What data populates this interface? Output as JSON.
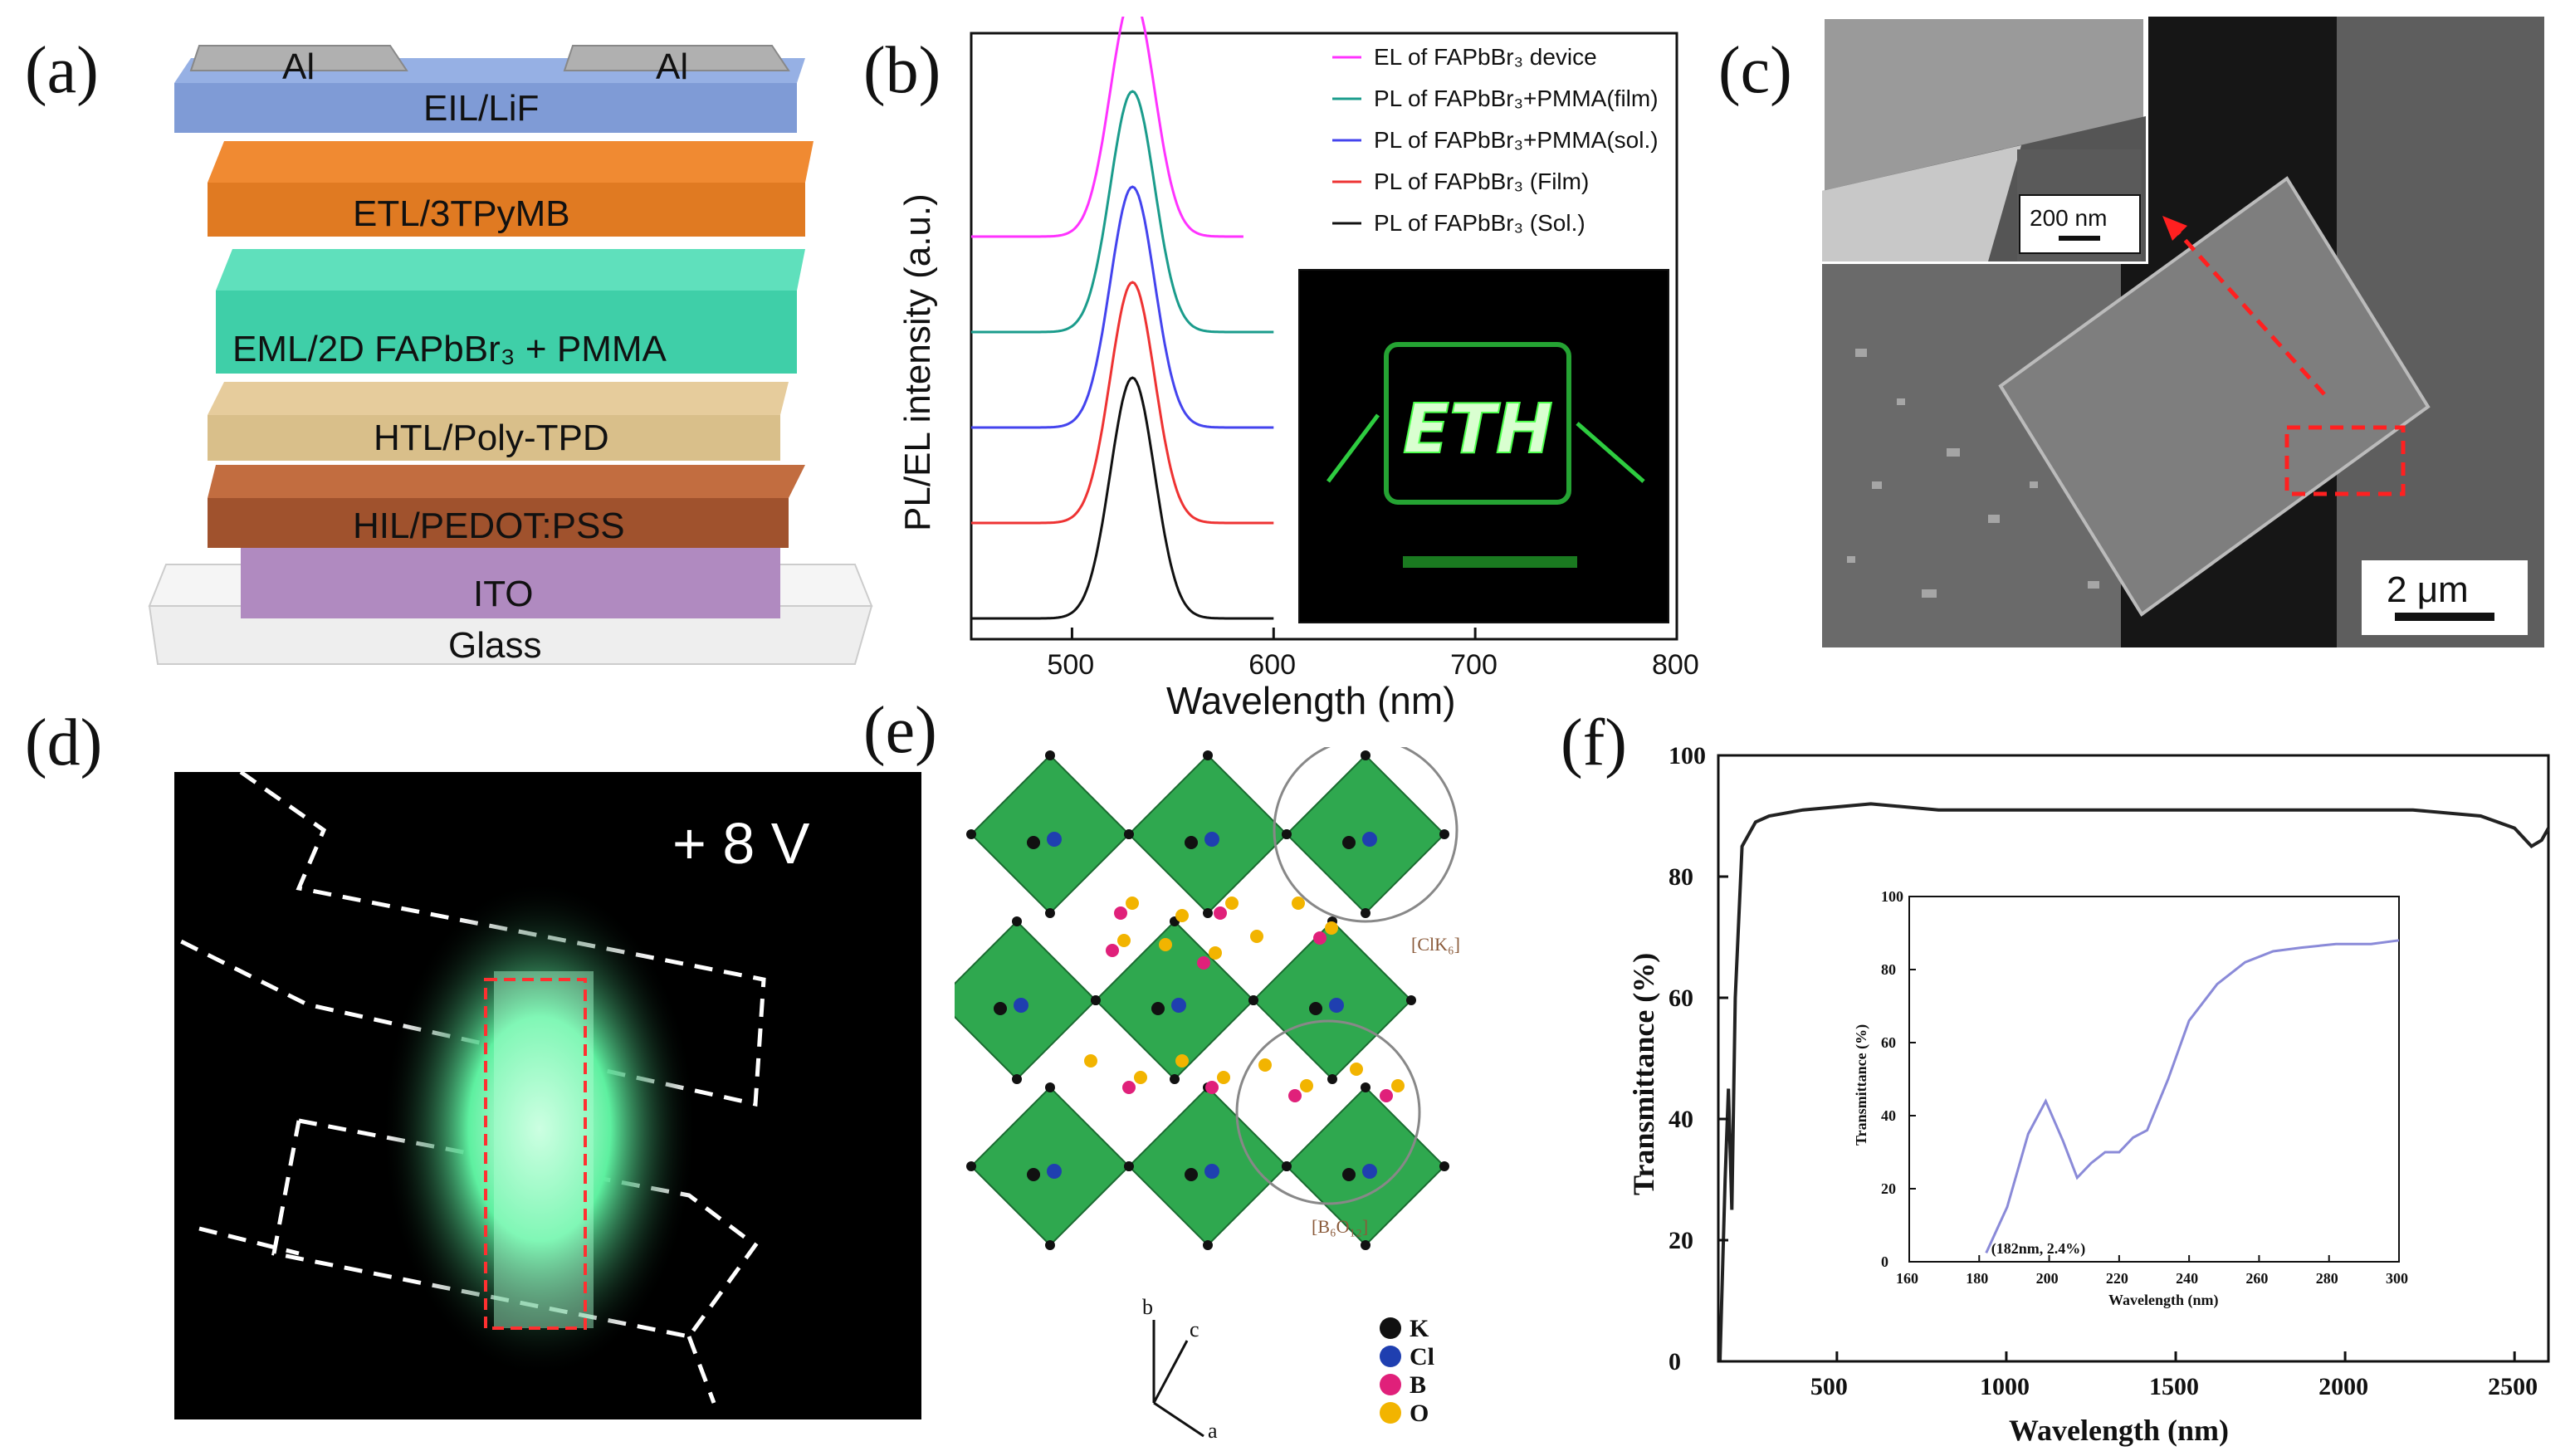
{
  "panels": {
    "a": {
      "label": "(a)",
      "layers": [
        {
          "text": "Al",
          "color": "#b0b0b0"
        },
        {
          "text": "Al",
          "color": "#b0b0b0"
        },
        {
          "text": "EIL/LiF",
          "color": "#7f9bd6"
        },
        {
          "text": "ETL/3TPyMB",
          "color": "#e07a22"
        },
        {
          "text": "EML/2D FAPbBr₃ + PMMA",
          "color": "#3fcfa8"
        },
        {
          "text": "HTL/Poly-TPD",
          "color": "#d9bf8a"
        },
        {
          "text": "HIL/PEDOT:PSS",
          "color": "#a0522d"
        },
        {
          "text": "ITO",
          "color": "#b08ac0"
        },
        {
          "text": "Glass",
          "color": "#eeeeee"
        }
      ]
    },
    "b": {
      "label": "(b)",
      "chart_data": {
        "type": "line",
        "title": "",
        "xlabel": "Wavelength (nm)",
        "ylabel": "PL/EL intensity (a.u.)",
        "xlim": [
          450,
          800
        ],
        "xticks": [
          "500",
          "600",
          "700",
          "800"
        ],
        "peak_nm": 530,
        "series": [
          {
            "name": "EL of FAPbBr₃ device",
            "color": "#ff33ff",
            "offset": 4
          },
          {
            "name": "PL of FAPbBr₃+PMMA(film)",
            "color": "#1b9c8c",
            "offset": 3
          },
          {
            "name": "PL of FAPbBr₃+PMMA(sol.)",
            "color": "#4444ee",
            "offset": 2
          },
          {
            "name": "PL of FAPbBr₃ (Film)",
            "color": "#ee3333",
            "offset": 1
          },
          {
            "name": "PL of FAPbBr₃ (Sol.)",
            "color": "#111111",
            "offset": 0
          }
        ],
        "inset_text": "ETH"
      }
    },
    "c": {
      "label": "(c)",
      "scale_main": "2 μm",
      "scale_inset": "200 nm"
    },
    "d": {
      "label": "(d)",
      "voltage": "+ 8 V"
    },
    "e": {
      "label": "(e)",
      "cluster_a": "[ClK₆]",
      "cluster_b": "[B₆O₁₂]",
      "axes": [
        "b",
        "c",
        "a"
      ],
      "legend": [
        {
          "symbol": "K",
          "color": "#111111"
        },
        {
          "symbol": "Cl",
          "color": "#1f3fb0"
        },
        {
          "symbol": "B",
          "color": "#e0207a"
        },
        {
          "symbol": "O",
          "color": "#f2b400"
        }
      ]
    },
    "f": {
      "label": "(f)",
      "chart_data": [
        {
          "type": "line",
          "title": "",
          "xlabel": "Wavelength (nm)",
          "ylabel": "Transmittance (%)",
          "xlim": [
            150,
            2600
          ],
          "ylim": [
            0,
            100
          ],
          "xticks": [
            "500",
            "1000",
            "1500",
            "2000",
            "2500"
          ],
          "yticks": [
            "0",
            "20",
            "40",
            "60",
            "80",
            "100"
          ],
          "x": [
            155,
            170,
            180,
            190,
            200,
            220,
            260,
            300,
            400,
            600,
            800,
            1000,
            1500,
            2000,
            2200,
            2400,
            2500,
            2550,
            2580,
            2600
          ],
          "y": [
            0,
            30,
            45,
            25,
            60,
            85,
            89,
            90,
            91,
            92,
            91,
            91,
            91,
            91,
            91,
            90,
            88,
            85,
            86,
            88
          ]
        },
        {
          "type": "line",
          "title": "",
          "xlabel": "Wavelength (nm)",
          "ylabel": "Transmittance (%)",
          "xlim": [
            160,
            300
          ],
          "ylim": [
            0,
            100
          ],
          "xticks": [
            "160",
            "180",
            "200",
            "220",
            "240",
            "260",
            "280",
            "300"
          ],
          "yticks": [
            "0",
            "20",
            "40",
            "60",
            "80",
            "100"
          ],
          "annotation": "(182nm, 2.4%)",
          "x": [
            182,
            188,
            194,
            199,
            204,
            208,
            212,
            216,
            220,
            224,
            228,
            234,
            240,
            248,
            256,
            264,
            272,
            282,
            292,
            300
          ],
          "y": [
            2.4,
            15,
            35,
            44,
            33,
            23,
            27,
            30,
            30,
            34,
            36,
            50,
            66,
            76,
            82,
            85,
            86,
            87,
            87,
            88
          ]
        }
      ]
    }
  }
}
